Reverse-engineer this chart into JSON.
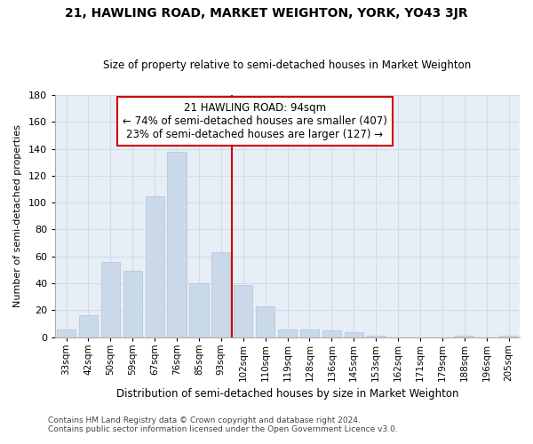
{
  "title": "21, HAWLING ROAD, MARKET WEIGHTON, YORK, YO43 3JR",
  "subtitle": "Size of property relative to semi-detached houses in Market Weighton",
  "xlabel": "Distribution of semi-detached houses by size in Market Weighton",
  "ylabel": "Number of semi-detached properties",
  "footnote1": "Contains HM Land Registry data © Crown copyright and database right 2024.",
  "footnote2": "Contains public sector information licensed under the Open Government Licence v3.0.",
  "property_label": "21 HAWLING ROAD: 94sqm",
  "annotation_line": "← 74% of semi-detached houses are smaller (407)",
  "annotation_line2": "23% of semi-detached houses are larger (127) →",
  "bar_color": "#c9d9ea",
  "bar_edge_color": "#b0c4d8",
  "vline_color": "#cc0000",
  "box_edge_color": "#cc0000",
  "grid_color": "#d0dcea",
  "background_color": "#e8eef6",
  "categories": [
    "33sqm",
    "42sqm",
    "50sqm",
    "59sqm",
    "67sqm",
    "76sqm",
    "85sqm",
    "93sqm",
    "102sqm",
    "110sqm",
    "119sqm",
    "128sqm",
    "136sqm",
    "145sqm",
    "153sqm",
    "162sqm",
    "171sqm",
    "179sqm",
    "188sqm",
    "196sqm",
    "205sqm"
  ],
  "values": [
    6,
    16,
    56,
    49,
    105,
    138,
    40,
    63,
    39,
    23,
    6,
    6,
    5,
    4,
    1,
    0,
    0,
    0,
    1,
    0,
    1
  ],
  "vline_index": 7,
  "ylim": [
    0,
    180
  ],
  "yticks": [
    0,
    20,
    40,
    60,
    80,
    100,
    120,
    140,
    160,
    180
  ]
}
